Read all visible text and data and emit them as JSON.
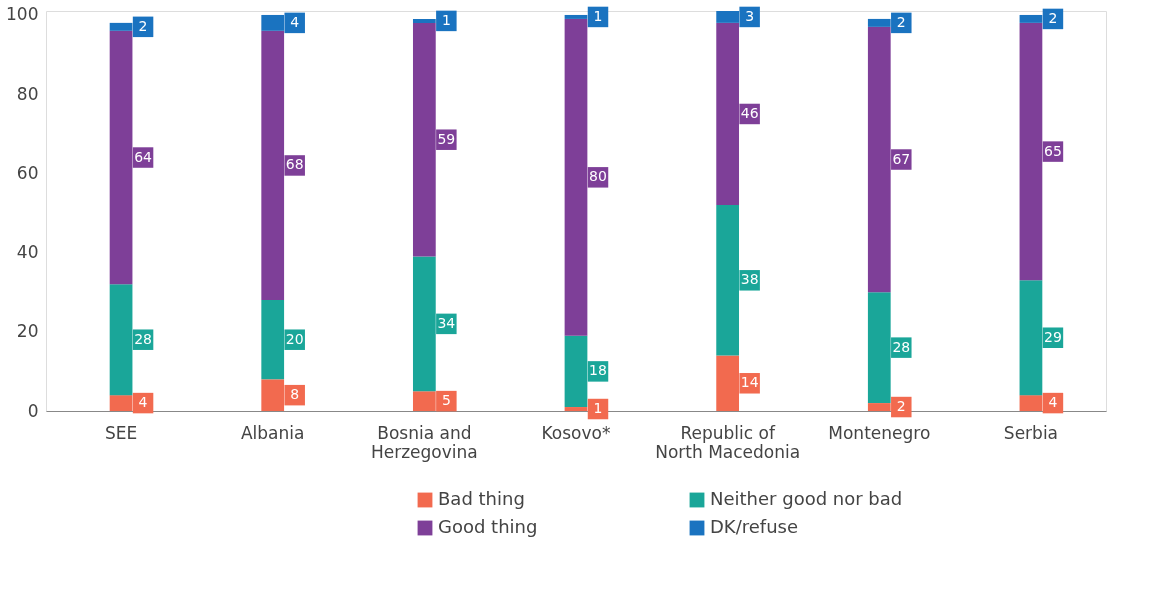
{
  "chart_data": {
    "type": "bar",
    "stacked": true,
    "data_labels": true,
    "categories": [
      "SEE",
      "Albania",
      "Bosnia and Herzegovina",
      "Kosovo*",
      "Republic of North Macedonia",
      "Montenegro",
      "Serbia"
    ],
    "series": [
      {
        "name": "Bad thing",
        "color": "#f26a4f",
        "values": [
          4,
          8,
          5,
          1,
          14,
          2,
          4
        ]
      },
      {
        "name": "Neither good nor bad",
        "color": "#1aa699",
        "values": [
          28,
          20,
          34,
          18,
          38,
          28,
          29
        ]
      },
      {
        "name": "Good thing",
        "color": "#7e3f98",
        "values": [
          64,
          68,
          59,
          80,
          46,
          67,
          65
        ]
      },
      {
        "name": "DK/refuse",
        "color": "#1a73c0",
        "values": [
          2,
          4,
          1,
          1,
          3,
          2,
          2
        ]
      }
    ],
    "ylim": [
      0,
      101
    ],
    "yticks": [
      0,
      20,
      40,
      60,
      80,
      100
    ],
    "grid": false,
    "legend": "bottom"
  }
}
